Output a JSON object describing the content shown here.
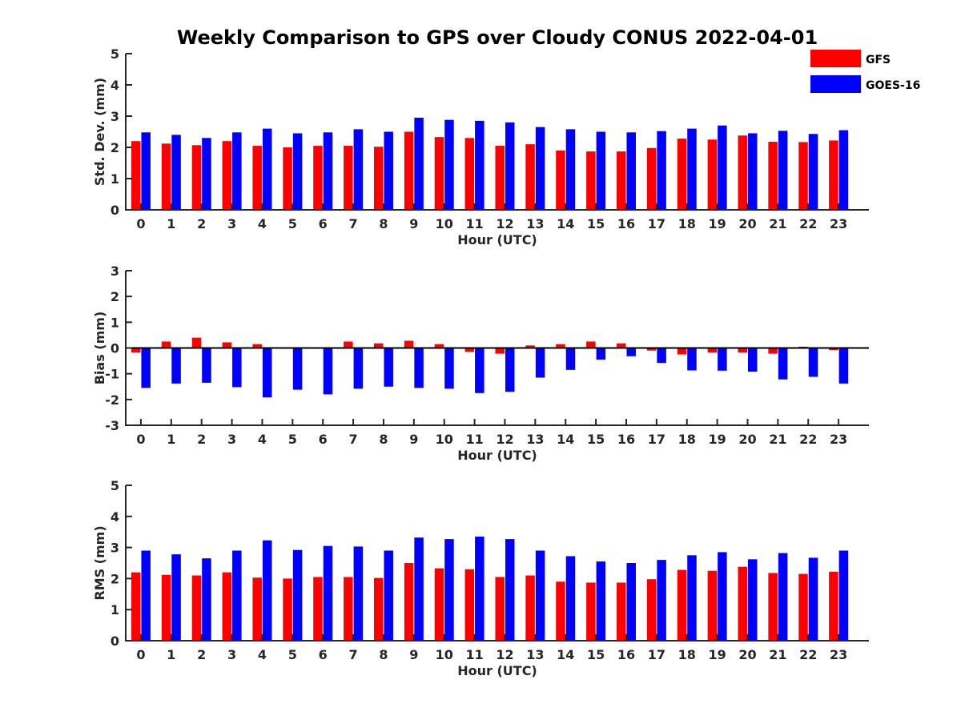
{
  "chart_data": {
    "title": "Weekly Comparison to GPS over Cloudy CONUS 2022-04-01",
    "legend": {
      "position": "top-right",
      "entries": [
        "GFS",
        "GOES-16"
      ]
    },
    "colors": {
      "GFS": "#ff0000",
      "GOES-16": "#0000ff",
      "axis": "#262626"
    },
    "panels": [
      {
        "type": "bar",
        "ylabel": "Std. Dev. (mm)",
        "xlabel": "Hour (UTC)",
        "ylim": [
          0,
          5
        ],
        "yticks": [
          0,
          1,
          2,
          3,
          4,
          5
        ],
        "grid": false,
        "categories": [
          "0",
          "1",
          "2",
          "3",
          "4",
          "5",
          "6",
          "7",
          "8",
          "9",
          "10",
          "11",
          "12",
          "13",
          "14",
          "15",
          "16",
          "17",
          "18",
          "19",
          "20",
          "21",
          "22",
          "23"
        ],
        "series": [
          {
            "name": "GFS",
            "values": [
              2.2,
              2.12,
              2.07,
              2.2,
              2.05,
              2.0,
              2.05,
              2.05,
              2.02,
              2.5,
              2.33,
              2.3,
              2.05,
              2.1,
              1.9,
              1.87,
              1.87,
              1.98,
              2.28,
              2.25,
              2.38,
              2.18,
              2.17,
              2.22
            ]
          },
          {
            "name": "GOES-16",
            "values": [
              2.48,
              2.4,
              2.3,
              2.48,
              2.6,
              2.45,
              2.48,
              2.58,
              2.5,
              2.95,
              2.88,
              2.85,
              2.8,
              2.65,
              2.58,
              2.5,
              2.48,
              2.52,
              2.6,
              2.7,
              2.45,
              2.53,
              2.43,
              2.55
            ]
          }
        ]
      },
      {
        "type": "bar",
        "ylabel": "Bias (mm)",
        "xlabel": "Hour (UTC)",
        "ylim": [
          -3,
          3
        ],
        "yticks": [
          -3,
          -2,
          -1,
          0,
          1,
          2,
          3
        ],
        "grid": false,
        "baseline": 0,
        "categories": [
          "0",
          "1",
          "2",
          "3",
          "4",
          "5",
          "6",
          "7",
          "8",
          "9",
          "10",
          "11",
          "12",
          "13",
          "14",
          "15",
          "16",
          "17",
          "18",
          "19",
          "20",
          "21",
          "22",
          "23"
        ],
        "series": [
          {
            "name": "GFS",
            "values": [
              -0.18,
              0.25,
              0.4,
              0.22,
              0.15,
              0.02,
              0.0,
              0.25,
              0.18,
              0.28,
              0.15,
              -0.15,
              -0.22,
              0.1,
              0.15,
              0.25,
              0.18,
              -0.1,
              -0.25,
              -0.18,
              -0.18,
              -0.22,
              0.05,
              -0.08
            ]
          },
          {
            "name": "GOES-16",
            "values": [
              -1.55,
              -1.38,
              -1.35,
              -1.52,
              -1.92,
              -1.62,
              -1.8,
              -1.58,
              -1.5,
              -1.55,
              -1.58,
              -1.75,
              -1.7,
              -1.15,
              -0.85,
              -0.45,
              -0.32,
              -0.58,
              -0.87,
              -0.88,
              -0.92,
              -1.22,
              -1.12,
              -1.38
            ]
          }
        ]
      },
      {
        "type": "bar",
        "ylabel": "RMS (mm)",
        "xlabel": "Hour (UTC)",
        "ylim": [
          0,
          5
        ],
        "yticks": [
          0,
          1,
          2,
          3,
          4,
          5
        ],
        "grid": false,
        "categories": [
          "0",
          "1",
          "2",
          "3",
          "4",
          "5",
          "6",
          "7",
          "8",
          "9",
          "10",
          "11",
          "12",
          "13",
          "14",
          "15",
          "16",
          "17",
          "18",
          "19",
          "20",
          "21",
          "22",
          "23"
        ],
        "series": [
          {
            "name": "GFS",
            "values": [
              2.2,
              2.12,
              2.1,
              2.2,
              2.03,
              2.0,
              2.05,
              2.05,
              2.02,
              2.5,
              2.33,
              2.3,
              2.05,
              2.1,
              1.9,
              1.87,
              1.87,
              1.98,
              2.28,
              2.25,
              2.38,
              2.18,
              2.15,
              2.22
            ]
          },
          {
            "name": "GOES-16",
            "values": [
              2.9,
              2.78,
              2.65,
              2.9,
              3.23,
              2.92,
              3.05,
              3.03,
              2.9,
              3.32,
              3.27,
              3.35,
              3.27,
              2.9,
              2.72,
              2.55,
              2.5,
              2.6,
              2.75,
              2.85,
              2.62,
              2.82,
              2.67,
              2.9
            ]
          }
        ]
      }
    ]
  }
}
